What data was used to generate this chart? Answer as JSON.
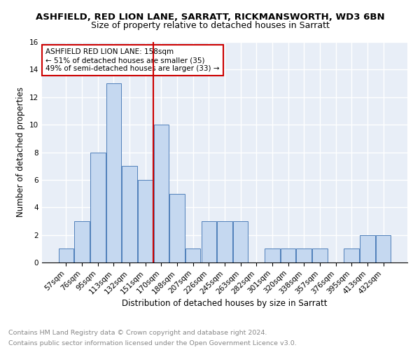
{
  "title": "ASHFIELD, RED LION LANE, SARRATT, RICKMANSWORTH, WD3 6BN",
  "subtitle": "Size of property relative to detached houses in Sarratt",
  "xlabel": "Distribution of detached houses by size in Sarratt",
  "ylabel": "Number of detached properties",
  "categories": [
    "57sqm",
    "76sqm",
    "95sqm",
    "113sqm",
    "132sqm",
    "151sqm",
    "170sqm",
    "188sqm",
    "207sqm",
    "226sqm",
    "245sqm",
    "263sqm",
    "282sqm",
    "301sqm",
    "320sqm",
    "338sqm",
    "357sqm",
    "376sqm",
    "395sqm",
    "413sqm",
    "432sqm"
  ],
  "values": [
    1,
    3,
    8,
    13,
    7,
    6,
    10,
    5,
    1,
    3,
    3,
    3,
    0,
    1,
    1,
    1,
    1,
    0,
    1,
    2,
    2
  ],
  "bar_color": "#c5d8f0",
  "bar_edge_color": "#4f7fba",
  "property_line_x": 5.5,
  "property_line_color": "#cc0000",
  "annotation_text": "ASHFIELD RED LION LANE: 158sqm\n← 51% of detached houses are smaller (35)\n49% of semi-detached houses are larger (33) →",
  "annotation_box_color": "#ffffff",
  "annotation_box_edge": "#cc0000",
  "ylim": [
    0,
    16
  ],
  "yticks": [
    0,
    2,
    4,
    6,
    8,
    10,
    12,
    14,
    16
  ],
  "footnote1": "Contains HM Land Registry data © Crown copyright and database right 2024.",
  "footnote2": "Contains public sector information licensed under the Open Government Licence v3.0.",
  "background_color": "#e8eef7",
  "grid_color": "#ffffff",
  "title_fontsize": 9.5,
  "subtitle_fontsize": 9,
  "axis_label_fontsize": 8.5,
  "tick_fontsize": 7.5,
  "annotation_fontsize": 7.5,
  "footnote_fontsize": 6.8
}
